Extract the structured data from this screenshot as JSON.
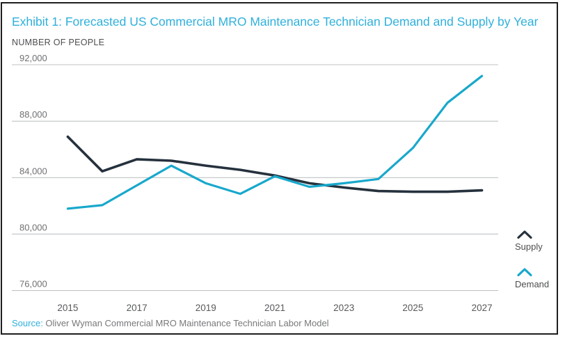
{
  "header": {
    "title": "Exhibit 1: Forecasted US Commercial MRO Maintenance Technician Demand and Supply by Year",
    "unit_label": "NUMBER OF PEOPLE"
  },
  "source": {
    "label": "Source:",
    "text": " Oliver Wyman Commercial MRO Maintenance Technician Labor Model"
  },
  "legend": {
    "items": [
      {
        "label": "Supply",
        "color": "#25313d"
      },
      {
        "label": "Demand",
        "color": "#18a8cc"
      }
    ]
  },
  "colors": {
    "accent_cyan": "#2fb0dc",
    "supply_line": "#25313d",
    "demand_line": "#18a8cc",
    "gridline": "#c0c2c4",
    "tick_text": "#6e7073",
    "x_tick_text": "#58595c",
    "frame_border": "#1e1e1e"
  },
  "chart_data": {
    "type": "line",
    "title": "Exhibit 1: Forecasted US Commercial MRO Maintenance Technician Demand and Supply by Year",
    "xlabel": "",
    "ylabel": "NUMBER OF PEOPLE",
    "x": [
      2015,
      2016,
      2017,
      2018,
      2019,
      2020,
      2021,
      2022,
      2023,
      2024,
      2025,
      2026,
      2027
    ],
    "series": [
      {
        "name": "Supply",
        "color": "#25313d",
        "values": [
          86900,
          84450,
          85300,
          85200,
          84850,
          84550,
          84150,
          83600,
          83300,
          83050,
          83000,
          83000,
          83100
        ]
      },
      {
        "name": "Demand",
        "color": "#18a8cc",
        "values": [
          81800,
          82050,
          83450,
          84850,
          83600,
          82850,
          84100,
          83350,
          83600,
          83900,
          86100,
          89300,
          91200
        ]
      }
    ],
    "ylim": [
      76000,
      92000
    ],
    "yticks": [
      92000,
      88000,
      84000,
      80000,
      76000
    ],
    "ytick_labels": [
      "92,000",
      "88,000",
      "84,000",
      "80,000",
      "76,000"
    ],
    "xticks": [
      2015,
      2017,
      2019,
      2021,
      2023,
      2025,
      2027
    ],
    "xtick_labels": [
      "2015",
      "2017",
      "2019",
      "2021",
      "2023",
      "2025",
      "2027"
    ],
    "grid": "horizontal-only",
    "legend_position": "right-outside"
  }
}
